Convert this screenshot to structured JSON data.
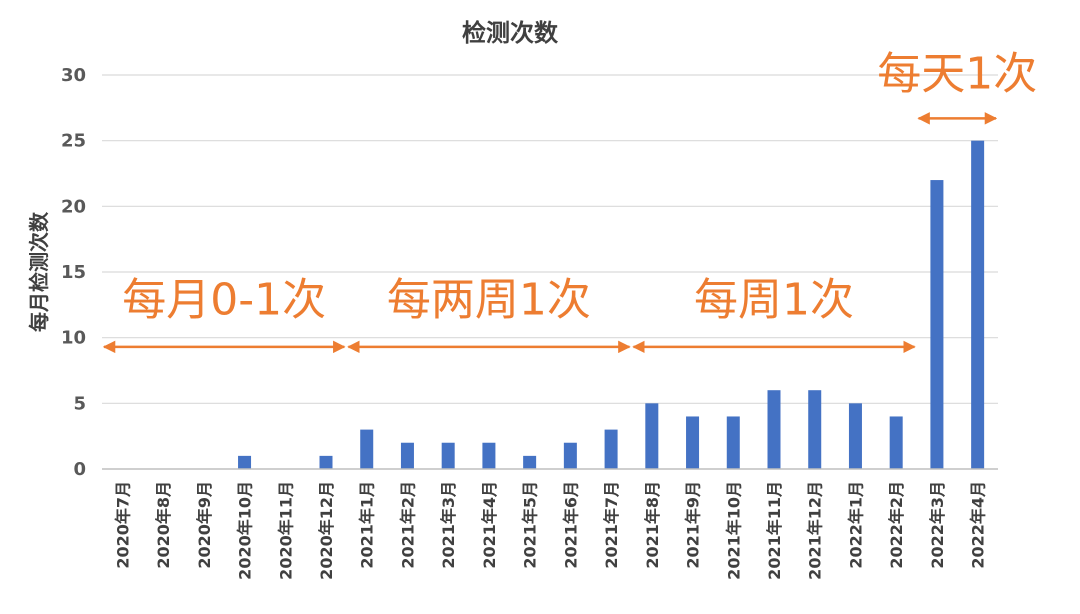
{
  "chart_data": {
    "type": "bar",
    "title": "检测次数",
    "xlabel": "",
    "ylabel": "每月检测次数",
    "ylim": [
      0,
      30
    ],
    "yticks": [
      0,
      5,
      10,
      15,
      20,
      25,
      30
    ],
    "grid": true,
    "legend": "none",
    "bar_color": "#4472C4",
    "annotation_color": "#ED7D31",
    "categories": [
      "2020年7月",
      "2020年8月",
      "2020年9月",
      "2020年10月",
      "2020年11月",
      "2020年12月",
      "2021年1月",
      "2021年2月",
      "2021年3月",
      "2021年4月",
      "2021年5月",
      "2021年6月",
      "2021年7月",
      "2021年8月",
      "2021年9月",
      "2021年10月",
      "2021年11月",
      "2021年12月",
      "2022年1月",
      "2022年2月",
      "2022年3月",
      "2022年4月"
    ],
    "values": [
      0,
      0,
      0,
      1,
      0,
      1,
      3,
      2,
      2,
      2,
      1,
      2,
      3,
      5,
      4,
      4,
      6,
      6,
      5,
      4,
      22,
      25
    ],
    "annotations": [
      {
        "text": "每月0-1次",
        "from_category": 0,
        "to_category": 5,
        "arrow_y": 9.3,
        "text_y": 13
      },
      {
        "text": "每两周1次",
        "from_category": 6,
        "to_category": 12,
        "arrow_y": 9.3,
        "text_y": 13
      },
      {
        "text": "每周1次",
        "from_category": 13,
        "to_category": 19,
        "arrow_y": 9.3,
        "text_y": 13
      },
      {
        "text": "每天1次",
        "from_category": 20,
        "to_category": 21,
        "arrow_y": 26.7,
        "text_y": 30.2
      }
    ]
  }
}
